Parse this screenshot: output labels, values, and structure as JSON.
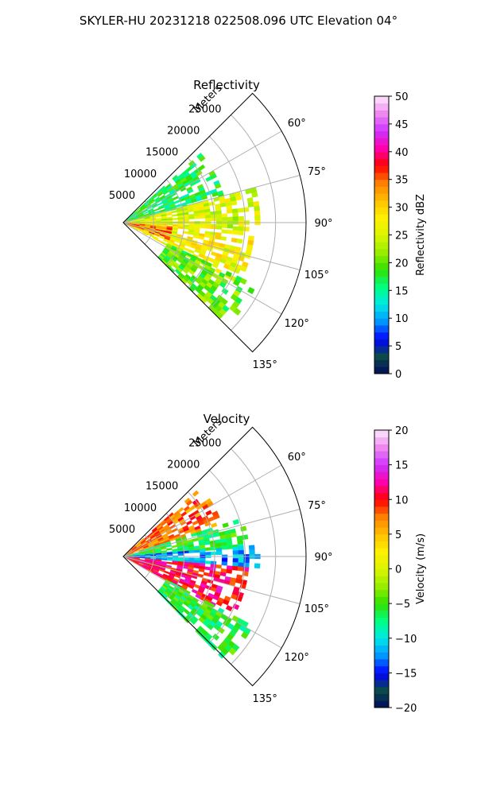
{
  "suptitle": "SKYLER-HU  20231218  022508.096 UTC Elevation 04°",
  "chart_data": [
    {
      "type": "heatmap",
      "projection": "polar sector",
      "title": "Reflectivity",
      "radial_label": "Meters",
      "radial_ticks": [
        "5000",
        "10000",
        "15000",
        "20000",
        "25000"
      ],
      "radial_range": [
        0,
        30000
      ],
      "angular_ticks": [
        "60°",
        "75°",
        "90°",
        "105°",
        "120°",
        "135°"
      ],
      "angular_range": [
        45,
        135
      ],
      "grid": true,
      "colorbar": {
        "label": "Reflectivity dBZ",
        "range": [
          0,
          50
        ],
        "ticks": [
          "0",
          "5",
          "10",
          "15",
          "20",
          "25",
          "30",
          "35",
          "40",
          "45",
          "50"
        ],
        "colormap": [
          "#000b5a",
          "#0a4a4a",
          "#0000ff",
          "#0094ff",
          "#00e8e8",
          "#00ff80",
          "#33e000",
          "#99ee00",
          "#ddf500",
          "#fff000",
          "#ffc000",
          "#ff8000",
          "#ff0000",
          "#ff00aa",
          "#cc33ff",
          "#ee88ee",
          "#ffe8ff"
        ]
      },
      "regions": [
        {
          "az_from": 48,
          "az_to": 75,
          "r_from": 0,
          "r_to": 17000,
          "value_dbz": 17
        },
        {
          "az_from": 75,
          "az_to": 92,
          "r_from": 0,
          "r_to": 22000,
          "value_dbz": 25
        },
        {
          "az_from": 92,
          "az_to": 118,
          "r_from": 0,
          "r_to": 21000,
          "value_dbz": 27
        },
        {
          "az_from": 95,
          "az_to": 110,
          "r_from": 0,
          "r_to": 8000,
          "value_dbz": 35
        },
        {
          "az_from": 115,
          "az_to": 135,
          "r_from": 8000,
          "r_to": 24000,
          "value_dbz": 20
        }
      ]
    },
    {
      "type": "heatmap",
      "projection": "polar sector",
      "title": "Velocity",
      "radial_label": "Meters",
      "radial_ticks": [
        "5000",
        "10000",
        "15000",
        "20000",
        "25000"
      ],
      "radial_range": [
        0,
        30000
      ],
      "angular_ticks": [
        "60°",
        "75°",
        "90°",
        "105°",
        "120°",
        "135°"
      ],
      "angular_range": [
        45,
        135
      ],
      "grid": true,
      "colorbar": {
        "label": "Velocity (m/s)",
        "range": [
          -20,
          20
        ],
        "ticks": [
          "−20",
          "−15",
          "−10",
          "−5",
          "0",
          "5",
          "10",
          "15",
          "20"
        ],
        "colormap": [
          "#000b5a",
          "#0a4a4a",
          "#0000ff",
          "#0094ff",
          "#00e8e8",
          "#00ff80",
          "#33e000",
          "#99ee00",
          "#ddf500",
          "#fff000",
          "#ffc000",
          "#ff8000",
          "#ff0000",
          "#ff00aa",
          "#cc33ff",
          "#ee88ee",
          "#ffe8ff"
        ]
      },
      "regions": [
        {
          "az_from": 48,
          "az_to": 72,
          "r_from": 0,
          "r_to": 17000,
          "value_ms": 8
        },
        {
          "az_from": 72,
          "az_to": 85,
          "r_from": 0,
          "r_to": 20000,
          "value_ms": -6
        },
        {
          "az_from": 85,
          "az_to": 95,
          "r_from": 0,
          "r_to": 22000,
          "value_ms": -12
        },
        {
          "az_from": 95,
          "az_to": 118,
          "r_from": 0,
          "r_to": 20000,
          "value_ms": 11
        },
        {
          "az_from": 118,
          "az_to": 135,
          "r_from": 8000,
          "r_to": 24000,
          "value_ms": -6
        }
      ]
    }
  ]
}
